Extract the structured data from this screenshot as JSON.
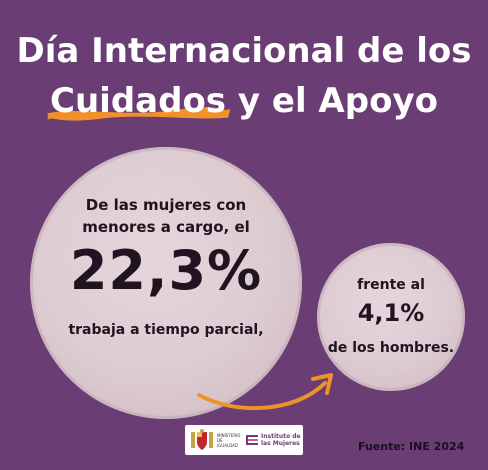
{
  "header": {
    "title_line1": "Día Internacional de los",
    "title_line2_highlight": "Cuidados",
    "title_line2_rest": " y el Apoyo",
    "highlight_color": "#f0922b"
  },
  "big_circle": {
    "line1": "De las mujeres con",
    "line2": "menores a cargo, el",
    "percentage": "22,3%",
    "line3": "trabaja a tiempo parcial,"
  },
  "small_circle": {
    "line1": "frente al",
    "percentage": "4,1%",
    "line3": "de los hombres."
  },
  "footer": {
    "ministry_text": "MINISTERIO DE IGUALDAD",
    "institute_line1": "Instituto de",
    "institute_line2": "las Mujeres",
    "source": "Fuente: INE 2024"
  },
  "colors": {
    "background": "#6a3d74",
    "circle": "#e1d0d7",
    "accent": "#f0922b"
  }
}
